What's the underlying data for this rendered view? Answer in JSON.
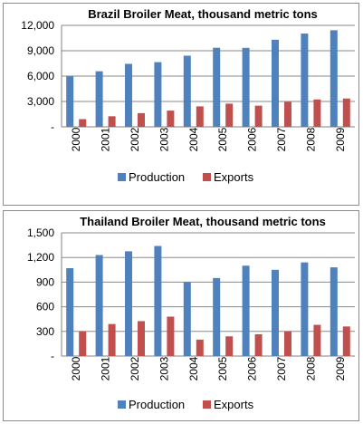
{
  "chart_data": [
    {
      "type": "bar",
      "title": "Brazil Broiler Meat, thousand metric tons",
      "categories": [
        "2000",
        "2001",
        "2002",
        "2003",
        "2004",
        "2005",
        "2006",
        "2007",
        "2008",
        "2009"
      ],
      "series": [
        {
          "name": "Production",
          "color": "#4f81bd",
          "values": [
            5980,
            6570,
            7450,
            7650,
            8410,
            9350,
            9340,
            10300,
            11030,
            11420
          ]
        },
        {
          "name": "Exports",
          "color": "#c0504d",
          "values": [
            910,
            1250,
            1620,
            1920,
            2420,
            2740,
            2500,
            2950,
            3240,
            3350
          ]
        }
      ],
      "ylim": [
        0,
        12000
      ],
      "yticks": [
        0,
        3000,
        6000,
        9000,
        12000
      ],
      "ytick_labels": [
        "-",
        "3,000",
        "6,000",
        "9,000",
        "12,000"
      ],
      "grid": true,
      "legend": "bottom"
    },
    {
      "type": "bar",
      "title": "Thailand Broiler Meat, thousand metric tons",
      "categories": [
        "2000",
        "2001",
        "2002",
        "2003",
        "2004",
        "2005",
        "2006",
        "2007",
        "2008",
        "2009"
      ],
      "series": [
        {
          "name": "Production",
          "color": "#4f81bd",
          "values": [
            1070,
            1230,
            1275,
            1340,
            900,
            950,
            1100,
            1050,
            1140,
            1080
          ]
        },
        {
          "name": "Exports",
          "color": "#c0504d",
          "values": [
            300,
            390,
            425,
            480,
            200,
            240,
            265,
            300,
            380,
            360
          ]
        }
      ],
      "ylim": [
        0,
        1500
      ],
      "yticks": [
        0,
        300,
        600,
        900,
        1200,
        1500
      ],
      "ytick_labels": [
        "-",
        "300",
        "600",
        "900",
        "1,200",
        "1,500"
      ],
      "grid": true,
      "legend": "bottom"
    }
  ]
}
